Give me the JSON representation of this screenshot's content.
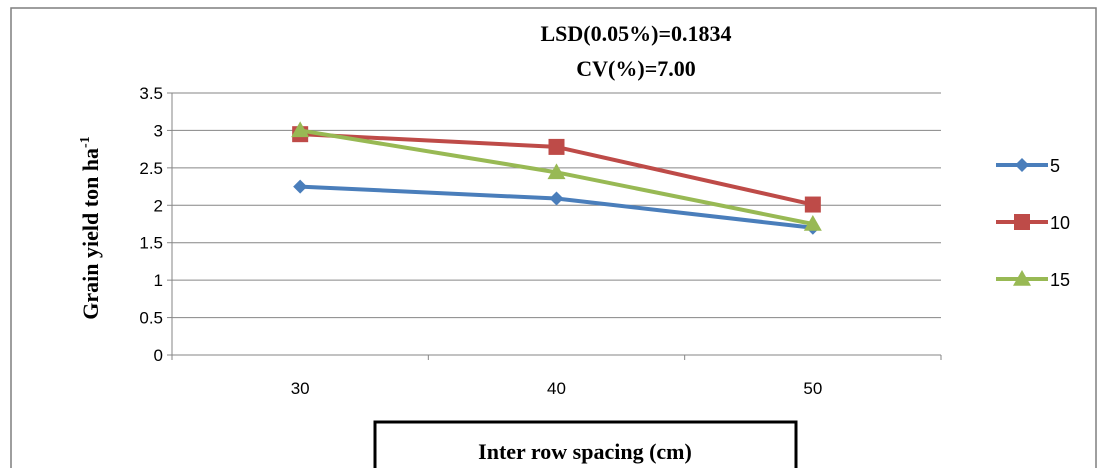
{
  "chart_data": {
    "type": "line",
    "title_lines": [
      "LSD(0.05%)=0.1834",
      "CV(%)=7.00"
    ],
    "ylabel": "Grain yield ton ha",
    "ylabel_superscript": "-1",
    "xlabel": "Inter row spacing (cm)",
    "categories": [
      "30",
      "40",
      "50"
    ],
    "y_ticks": [
      "0",
      "0.5",
      "1",
      "1.5",
      "2",
      "2.5",
      "3",
      "3.5"
    ],
    "ylim": [
      0,
      3.5
    ],
    "grid": true,
    "legend_position": "right",
    "series": [
      {
        "name": "5",
        "values": [
          2.25,
          2.09,
          1.7
        ],
        "color": "#4a7ebb",
        "marker": "diamond"
      },
      {
        "name": "10",
        "values": [
          2.95,
          2.78,
          2.01
        ],
        "color": "#be4b48",
        "marker": "square"
      },
      {
        "name": "15",
        "values": [
          3.0,
          2.44,
          1.75
        ],
        "color": "#98b954",
        "marker": "triangle"
      }
    ]
  }
}
